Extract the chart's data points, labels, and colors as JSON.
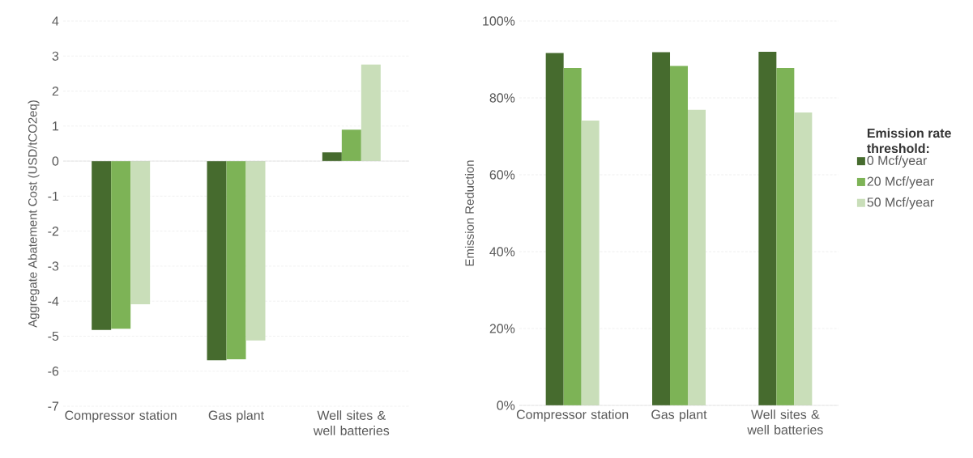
{
  "chart_data": [
    {
      "type": "bar",
      "ylabel": "Aggregate Abatement Cost (USD/tCO2eq)",
      "categories": [
        "Compressor station",
        "Gas plant",
        "Well sites & well batteries"
      ],
      "series": [
        {
          "color": "#466b2e",
          "values": [
            -4.82,
            -5.69,
            0.25
          ]
        },
        {
          "color": "#7db356",
          "values": [
            -4.79,
            -5.66,
            0.9
          ]
        },
        {
          "color": "#c9deb9",
          "values": [
            -4.09,
            -5.12,
            2.76
          ]
        }
      ],
      "ylim": [
        -7,
        4
      ],
      "yticks": [
        -7,
        -6,
        -5,
        -4,
        -3,
        -2,
        -1,
        0,
        1,
        2,
        3,
        4
      ],
      "grid": "y"
    },
    {
      "type": "bar",
      "ylabel": "Emission Reduction",
      "legend_title": "Emission rate threshold:",
      "categories": [
        "Compressor station",
        "Gas plant",
        "Well sites & well batteries"
      ],
      "series": [
        {
          "name": "0 Mcf/year",
          "color": "#466b2e",
          "values": [
            91.7,
            91.9,
            92.0
          ]
        },
        {
          "name": "20 Mcf/year",
          "color": "#7db356",
          "values": [
            87.8,
            88.3,
            87.8
          ]
        },
        {
          "name": "50 Mcf/year",
          "color": "#c9deb9",
          "values": [
            74.1,
            76.9,
            76.2
          ]
        }
      ],
      "ylim": [
        0,
        100
      ],
      "yticks": [
        {
          "value": 0,
          "label": "0%"
        },
        {
          "value": 20,
          "label": "20%"
        },
        {
          "value": 40,
          "label": "40%"
        },
        {
          "value": 60,
          "label": "60%"
        },
        {
          "value": 80,
          "label": "80%"
        },
        {
          "value": 100,
          "label": "100%"
        }
      ],
      "grid": "y",
      "legend": "right"
    }
  ]
}
